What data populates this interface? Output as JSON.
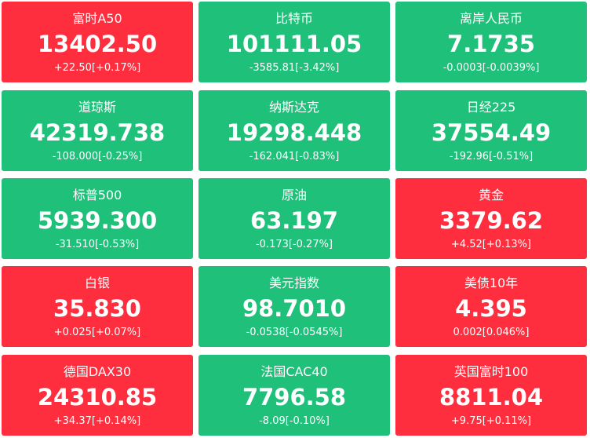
{
  "colors": {
    "up": "#fe2e3e",
    "down": "#1fc07a",
    "text": "#ffffff"
  },
  "tiles": [
    {
      "name": "富时A50",
      "price": "13402.50",
      "change": "+22.50[+0.17%]",
      "direction": "up"
    },
    {
      "name": "比特币",
      "price": "101111.05",
      "change": "-3585.81[-3.42%]",
      "direction": "down"
    },
    {
      "name": "离岸人民币",
      "price": "7.1735",
      "change": "-0.0003[-0.0039%]",
      "direction": "down"
    },
    {
      "name": "道琼斯",
      "price": "42319.738",
      "change": "-108.000[-0.25%]",
      "direction": "down"
    },
    {
      "name": "纳斯达克",
      "price": "19298.448",
      "change": "-162.041[-0.83%]",
      "direction": "down"
    },
    {
      "name": "日经225",
      "price": "37554.49",
      "change": "-192.96[-0.51%]",
      "direction": "down"
    },
    {
      "name": "标普500",
      "price": "5939.300",
      "change": "-31.510[-0.53%]",
      "direction": "down"
    },
    {
      "name": "原油",
      "price": "63.197",
      "change": "-0.173[-0.27%]",
      "direction": "down"
    },
    {
      "name": "黄金",
      "price": "3379.62",
      "change": "+4.52[+0.13%]",
      "direction": "up"
    },
    {
      "name": "白银",
      "price": "35.830",
      "change": "+0.025[+0.07%]",
      "direction": "up"
    },
    {
      "name": "美元指数",
      "price": "98.7010",
      "change": "-0.0538[-0.0545%]",
      "direction": "down"
    },
    {
      "name": "美债10年",
      "price": "4.395",
      "change": "0.002[0.046%]",
      "direction": "up"
    },
    {
      "name": "德国DAX30",
      "price": "24310.85",
      "change": "+34.37[+0.14%]",
      "direction": "up"
    },
    {
      "name": "法国CAC40",
      "price": "7796.58",
      "change": "-8.09[-0.10%]",
      "direction": "down"
    },
    {
      "name": "英国富时100",
      "price": "8811.04",
      "change": "+9.75[+0.11%]",
      "direction": "up"
    }
  ]
}
